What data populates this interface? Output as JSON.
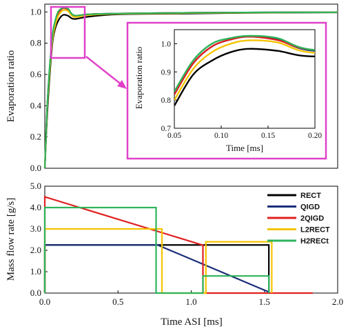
{
  "colors": {
    "RECT": "#000000",
    "QIGD": "#1a2e78",
    "2QIGD": "#e02020",
    "L2RECT": "#f5c400",
    "H2RECt": "#2db35a",
    "highlight": "#e040c8"
  },
  "chart_data": [
    {
      "id": "evaporation",
      "type": "line",
      "xlabel": "",
      "ylabel": "Evaporation ratio",
      "xlim": [
        0,
        2.0
      ],
      "ylim": [
        0,
        1.05
      ],
      "yticks": [
        0,
        0.2,
        0.4,
        0.6,
        0.8,
        1.0
      ],
      "ytick_labels": [
        "0.0",
        "0.2",
        "0.4",
        "0.6",
        "0.8",
        "1.0"
      ],
      "grid": false,
      "series": [
        {
          "name": "RECT",
          "x": [
            0,
            0.02,
            0.05,
            0.07,
            0.09,
            0.11,
            0.13,
            0.16,
            0.2,
            0.3,
            0.5,
            1.0,
            1.5,
            2.0
          ],
          "y": [
            0,
            0.4,
            0.78,
            0.89,
            0.94,
            0.97,
            0.982,
            0.975,
            0.955,
            0.97,
            0.985,
            0.99,
            0.995,
            0.997
          ]
        },
        {
          "name": "QIGD",
          "x": [
            0,
            0.02,
            0.05,
            0.07,
            0.09,
            0.11,
            0.13,
            0.16,
            0.2,
            0.3,
            0.5,
            1.0,
            1.5,
            2.0
          ],
          "y": [
            0,
            0.45,
            0.82,
            0.93,
            0.99,
            1.015,
            1.025,
            1.015,
            0.975,
            0.985,
            0.99,
            0.995,
            0.997,
            0.998
          ]
        },
        {
          "name": "2QIGD",
          "x": [
            0,
            0.02,
            0.05,
            0.07,
            0.09,
            0.11,
            0.13,
            0.16,
            0.2,
            0.3,
            0.5,
            1.0,
            1.5,
            2.0
          ],
          "y": [
            0,
            0.45,
            0.82,
            0.93,
            0.99,
            1.015,
            1.025,
            1.013,
            0.978,
            0.985,
            0.99,
            0.995,
            0.997,
            0.998
          ]
        },
        {
          "name": "L2RECT",
          "x": [
            0,
            0.02,
            0.05,
            0.07,
            0.09,
            0.11,
            0.13,
            0.16,
            0.2,
            0.3,
            0.5,
            1.0,
            1.5,
            2.0
          ],
          "y": [
            0,
            0.44,
            0.8,
            0.91,
            0.97,
            1.0,
            1.012,
            1.005,
            0.968,
            0.98,
            0.988,
            0.993,
            0.996,
            0.998
          ]
        },
        {
          "name": "H2RECt",
          "x": [
            0,
            0.02,
            0.05,
            0.07,
            0.09,
            0.11,
            0.13,
            0.16,
            0.2,
            0.3,
            0.5,
            1.0,
            1.5,
            2.0
          ],
          "y": [
            0,
            0.46,
            0.83,
            0.94,
            1.0,
            1.02,
            1.028,
            1.02,
            0.978,
            0.985,
            0.99,
            0.995,
            0.997,
            0.998
          ]
        }
      ]
    },
    {
      "id": "inset",
      "type": "line",
      "xlabel": "Time [ms]",
      "ylabel": "Evaporation ratio",
      "xlim": [
        0.05,
        0.2
      ],
      "ylim": [
        0.7,
        1.05
      ],
      "xticks": [
        0.05,
        0.1,
        0.15,
        0.2
      ],
      "xtick_labels": [
        "0.05",
        "0.10",
        "0.15",
        "0.20"
      ],
      "yticks": [
        0.7,
        0.8,
        0.9,
        1.0
      ],
      "ytick_labels": [
        "0.7",
        "0.8",
        "0.9",
        "1.0"
      ],
      "grid": false,
      "zoom_region": {
        "x": [
          0.02,
          0.13
        ],
        "y": [
          0.7,
          1.02
        ]
      }
    },
    {
      "id": "massflow",
      "type": "line",
      "xlabel": "Time ASI [ms]",
      "ylabel": "Mass flow rate [g/s]",
      "xlim": [
        0,
        2.0
      ],
      "ylim": [
        0,
        5.0
      ],
      "xticks": [
        0,
        0.5,
        1.0,
        1.5,
        2.0
      ],
      "xtick_labels": [
        "0.0",
        "0.5",
        "1.0",
        "1.5",
        "2.0"
      ],
      "yticks": [
        0,
        1,
        2,
        3,
        4,
        5
      ],
      "ytick_labels": [
        "0.0",
        "1.0",
        "2.0",
        "3.0",
        "4.0",
        "5.0"
      ],
      "grid": false,
      "legend": "top-right",
      "series": [
        {
          "name": "RECT",
          "x": [
            0,
            0,
            1.53,
            1.53
          ],
          "y": [
            0,
            2.25,
            2.25,
            0
          ]
        },
        {
          "name": "QIGD",
          "x": [
            0,
            0,
            0.77,
            1.53,
            1.53
          ],
          "y": [
            0,
            2.25,
            2.25,
            0.05,
            0
          ]
        },
        {
          "name": "2QIGD",
          "x": [
            0,
            0,
            1.08,
            1.08,
            1.83
          ],
          "y": [
            0,
            4.5,
            2.24,
            0,
            0
          ]
        },
        {
          "name": "L2RECT",
          "x": [
            0,
            0,
            0.8,
            0.8,
            1.1,
            1.1,
            1.55,
            1.55
          ],
          "y": [
            0,
            3.0,
            3.0,
            0,
            0,
            2.4,
            2.4,
            0
          ]
        },
        {
          "name": "H2RECt",
          "x": [
            0,
            0,
            0.76,
            0.76,
            1.08,
            1.08,
            1.53,
            1.53
          ],
          "y": [
            0,
            4.0,
            4.0,
            0,
            0,
            0.8,
            0.8,
            0
          ]
        }
      ]
    }
  ]
}
